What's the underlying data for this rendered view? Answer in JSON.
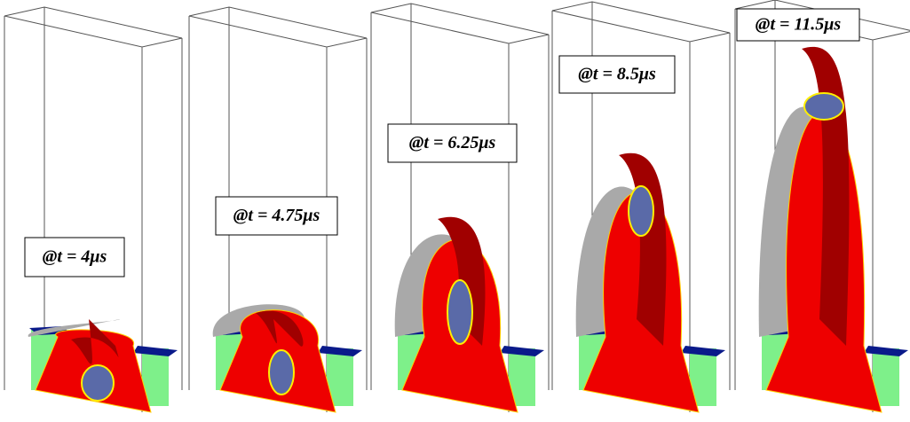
{
  "panels": [
    {
      "label": "@t = 4μs"
    },
    {
      "label": "@t = 4.75μs"
    },
    {
      "label": "@t = 6.25μs"
    },
    {
      "label": "@t = 8.5μs"
    },
    {
      "label": "@t = 11.5μs"
    }
  ]
}
